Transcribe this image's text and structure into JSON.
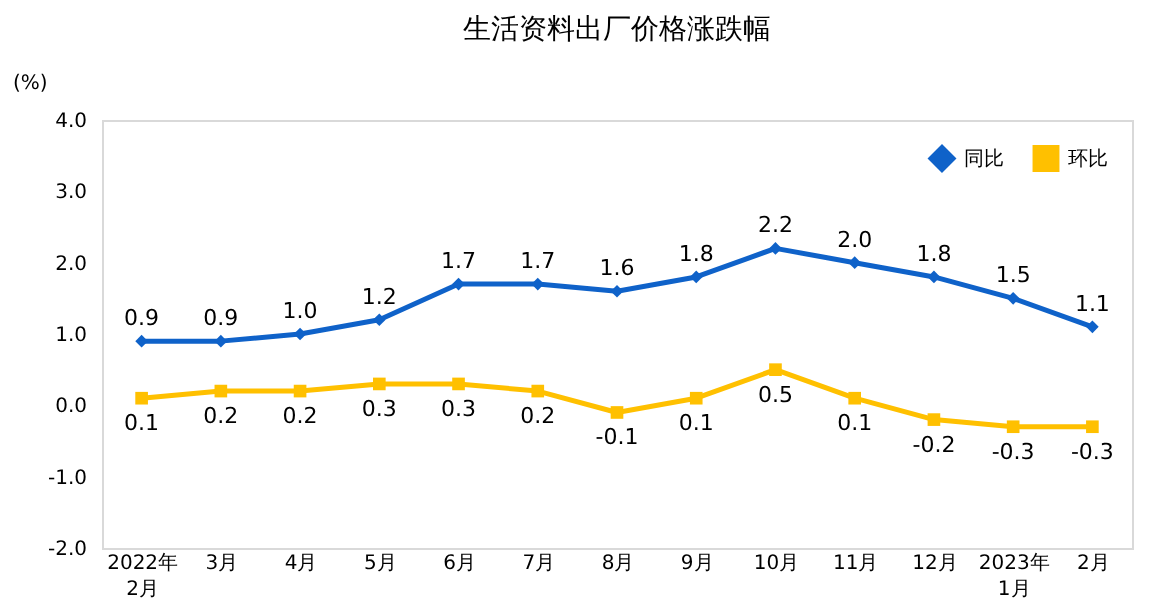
{
  "chart_data": {
    "type": "line",
    "title": "生活资料出厂价格涨跌幅",
    "ylabel": "(%)",
    "categories": [
      "2022年\n2月",
      "3月",
      "4月",
      "5月",
      "6月",
      "7月",
      "8月",
      "9月",
      "10月",
      "11月",
      "12月",
      "2023年\n1月",
      "2月"
    ],
    "series": [
      {
        "name": "同比",
        "color": "#0f62c9",
        "marker": "diamond",
        "values": [
          0.9,
          0.9,
          1.0,
          1.2,
          1.7,
          1.7,
          1.6,
          1.8,
          2.2,
          2.0,
          1.8,
          1.5,
          1.1
        ],
        "value_labels": [
          "0.9",
          "0.9",
          "1.0",
          "1.2",
          "1.7",
          "1.7",
          "1.6",
          "1.8",
          "2.2",
          "2.0",
          "1.8",
          "1.5",
          "1.1"
        ]
      },
      {
        "name": "环比",
        "color": "#ffc000",
        "marker": "square",
        "values": [
          0.1,
          0.2,
          0.2,
          0.3,
          0.3,
          0.2,
          -0.1,
          0.1,
          0.5,
          0.1,
          -0.2,
          -0.3,
          -0.3
        ],
        "value_labels": [
          "0.1",
          "0.2",
          "0.2",
          "0.3",
          "0.3",
          "0.2",
          "-0.1",
          "0.1",
          "0.5",
          "0.1",
          "-0.2",
          "-0.3",
          "-0.3"
        ]
      }
    ],
    "ylim": [
      -2.0,
      4.0
    ],
    "yticks": [
      {
        "value": -2,
        "label": "-2.0"
      },
      {
        "value": -1,
        "label": "-1.0"
      },
      {
        "value": 0,
        "label": "0.0"
      },
      {
        "value": 1,
        "label": "1.0"
      },
      {
        "value": 2,
        "label": "2.0"
      },
      {
        "value": 3,
        "label": "3.0"
      },
      {
        "value": 4,
        "label": "4.0"
      }
    ],
    "legend": "top right",
    "grid": false
  }
}
